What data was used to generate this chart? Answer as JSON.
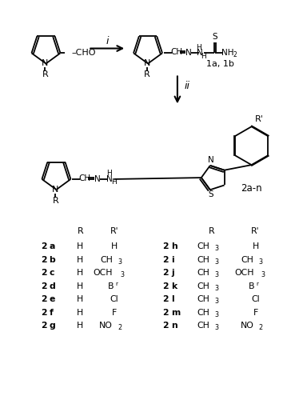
{
  "background": "#ffffff",
  "table_left_rows": [
    [
      "2a",
      "H",
      "H"
    ],
    [
      "2b",
      "H",
      "CH3"
    ],
    [
      "2c",
      "H",
      "OCH3"
    ],
    [
      "2d",
      "H",
      "Br"
    ],
    [
      "2e",
      "H",
      "Cl"
    ],
    [
      "2f",
      "H",
      "F"
    ],
    [
      "2g",
      "H",
      "NO2"
    ]
  ],
  "table_right_rows": [
    [
      "2h",
      "CH3",
      "H"
    ],
    [
      "2i",
      "CH3",
      "CH3"
    ],
    [
      "2j",
      "CH3",
      "OCH3"
    ],
    [
      "2k",
      "CH3",
      "Br"
    ],
    [
      "2l",
      "CH3",
      "Cl"
    ],
    [
      "2m",
      "CH3",
      "F"
    ],
    [
      "2n",
      "CH3",
      "NO2"
    ]
  ]
}
